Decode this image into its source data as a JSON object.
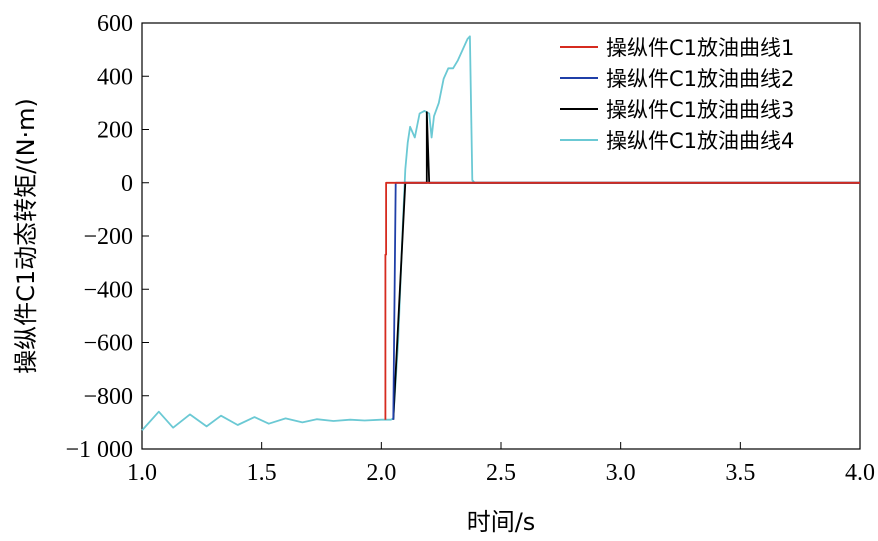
{
  "chart_data": {
    "type": "line",
    "title": "",
    "xlabel": "时间/s",
    "ylabel": "操纵件C1动态转矩/(N·m)",
    "xlim": [
      1.0,
      4.0
    ],
    "ylim": [
      -1000,
      600
    ],
    "xticks": [
      1.0,
      1.5,
      2.0,
      2.5,
      3.0,
      3.5,
      4.0
    ],
    "xtick_labels": [
      "1.0",
      "1.5",
      "2.0",
      "2.5",
      "3.0",
      "3.5",
      "4.0"
    ],
    "yticks": [
      600,
      400,
      200,
      0,
      -200,
      -400,
      -600,
      -800,
      -1000
    ],
    "ytick_labels": [
      "600",
      "400",
      "200",
      "0",
      "−200",
      "−400",
      "−600",
      "−800",
      "−1 000"
    ],
    "grid": false,
    "legend_position": "top-right",
    "series": [
      {
        "name": "操纵件C1放油曲线1",
        "color": "#d62b1f",
        "x": [
          2.017,
          2.017,
          2.02,
          2.02,
          4.0
        ],
        "y": [
          -890,
          -270,
          -270,
          0,
          0
        ]
      },
      {
        "name": "操纵件C1放油曲线2",
        "color": "#1f3fa8",
        "x": [
          2.05,
          2.052,
          2.06,
          4.0
        ],
        "y": [
          -890,
          -700,
          0,
          0
        ]
      },
      {
        "name": "操纵件C1放油曲线3",
        "color": "#000000",
        "x": [
          2.05,
          2.1,
          2.19,
          2.19,
          2.2,
          2.37,
          2.38,
          4.0
        ],
        "y": [
          -890,
          0,
          0,
          265,
          0,
          0,
          0,
          0
        ]
      },
      {
        "name": "操纵件C1放油曲线4",
        "color": "#6bc9d4",
        "x": [
          1.0,
          1.03,
          1.07,
          1.13,
          1.2,
          1.27,
          1.33,
          1.4,
          1.47,
          1.53,
          1.6,
          1.67,
          1.73,
          1.8,
          1.87,
          1.93,
          2.0,
          2.04,
          2.05,
          2.07,
          2.09,
          2.1,
          2.11,
          2.12,
          2.14,
          2.15,
          2.16,
          2.18,
          2.2,
          2.21,
          2.22,
          2.24,
          2.26,
          2.28,
          2.3,
          2.32,
          2.34,
          2.36,
          2.37,
          2.38,
          2.39,
          4.0
        ],
        "y": [
          -930,
          -900,
          -860,
          -920,
          -870,
          -915,
          -875,
          -910,
          -880,
          -905,
          -885,
          -900,
          -888,
          -895,
          -890,
          -893,
          -890,
          -890,
          -885,
          -600,
          -150,
          50,
          150,
          210,
          170,
          215,
          260,
          270,
          260,
          170,
          250,
          300,
          390,
          430,
          430,
          460,
          500,
          540,
          550,
          10,
          0,
          0
        ]
      }
    ]
  }
}
